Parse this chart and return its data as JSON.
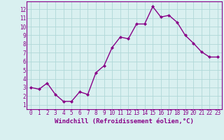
{
  "x": [
    0,
    1,
    2,
    3,
    4,
    5,
    6,
    7,
    8,
    9,
    10,
    11,
    12,
    13,
    14,
    15,
    16,
    17,
    18,
    19,
    20,
    21,
    22,
    23
  ],
  "y": [
    3.0,
    2.8,
    3.5,
    2.2,
    1.4,
    1.4,
    2.5,
    2.2,
    4.7,
    5.5,
    7.6,
    8.8,
    8.6,
    10.3,
    10.3,
    12.3,
    11.1,
    11.3,
    10.5,
    9.0,
    8.1,
    7.1,
    6.5,
    6.5
  ],
  "line_color": "#880088",
  "marker": "D",
  "marker_size": 2,
  "bg_color": "#d9f0f0",
  "grid_color": "#b0d8d8",
  "xlabel": "Windchill (Refroidissement éolien,°C)",
  "xlim": [
    -0.5,
    23.5
  ],
  "ylim": [
    0.5,
    12.9
  ],
  "xticks": [
    0,
    1,
    2,
    3,
    4,
    5,
    6,
    7,
    8,
    9,
    10,
    11,
    12,
    13,
    14,
    15,
    16,
    17,
    18,
    19,
    20,
    21,
    22,
    23
  ],
  "yticks": [
    1,
    2,
    3,
    4,
    5,
    6,
    7,
    8,
    9,
    10,
    11,
    12
  ],
  "axis_color": "#880088",
  "tick_fontsize": 5.5,
  "xlabel_fontsize": 6.5,
  "linewidth": 1.0
}
